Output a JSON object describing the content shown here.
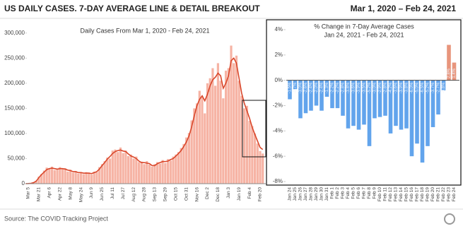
{
  "header": {
    "title": "US DAILY CASES. 7-DAY AVERAGE LINE & DETAIL BREAKOUT",
    "date_range": "Mar 1, 2020 – Feb 24, 2021"
  },
  "source": "Source: The COVID Tracking Project",
  "chart_data": [
    {
      "type": "bar_line",
      "title": "Daily Cases From Mar 1, 2020 - Feb 24, 2021",
      "categories": [
        null,
        "Mar 5",
        null,
        null,
        null,
        "Mar 21",
        null,
        null,
        null,
        "Apr 6",
        null,
        null,
        null,
        "Apr 22",
        null,
        null,
        null,
        "May 8",
        null,
        null,
        null,
        "May 24",
        null,
        null,
        null,
        "Jun 9",
        null,
        null,
        null,
        "Jun 25",
        null,
        null,
        null,
        "Jul 11",
        null,
        null,
        null,
        "Jul 27",
        null,
        null,
        null,
        "Aug 12",
        null,
        null,
        null,
        "Aug 28",
        null,
        null,
        null,
        "Sep 13",
        null,
        null,
        null,
        "Sep 29",
        null,
        null,
        null,
        "Oct 15",
        null,
        null,
        null,
        "Oct 31",
        null,
        null,
        null,
        "Nov 16",
        null,
        null,
        null,
        "Dec 2",
        null,
        null,
        null,
        "Dec 18",
        null,
        null,
        null,
        "Jan 3",
        null,
        null,
        null,
        "Jan 19",
        null,
        null,
        null,
        "Feb 4",
        null,
        null,
        null,
        "Feb 20",
        null
      ],
      "series": [
        {
          "type": "bar",
          "color": "#f6b3a4",
          "values": [
            0,
            300,
            700,
            2500,
            6000,
            14000,
            19000,
            26000,
            32000,
            29000,
            34000,
            27000,
            28000,
            33000,
            29000,
            31000,
            24000,
            28000,
            22000,
            25000,
            20000,
            23000,
            19000,
            23000,
            22000,
            18000,
            24000,
            23000,
            33000,
            39000,
            45000,
            52000,
            50000,
            66000,
            68000,
            63000,
            72000,
            61000,
            66000,
            55000,
            58000,
            50000,
            54000,
            43000,
            44000,
            39000,
            45000,
            38000,
            34000,
            39000,
            43000,
            40000,
            47000,
            41000,
            49000,
            46000,
            54000,
            58000,
            63000,
            71000,
            79000,
            92000,
            101000,
            126000,
            150000,
            160000,
            185000,
            172000,
            140000,
            200000,
            210000,
            230000,
            195000,
            240000,
            205000,
            170000,
            225000,
            230000,
            275000,
            240000,
            255000,
            205000,
            175000,
            150000,
            155000,
            125000,
            115000,
            100000,
            80000,
            65000,
            60000
          ]
        },
        {
          "type": "line",
          "color": "#d9472b",
          "values": [
            0,
            200,
            600,
            2000,
            5000,
            12000,
            18000,
            23000,
            28000,
            30000,
            31000,
            30000,
            29000,
            30000,
            30000,
            29000,
            27000,
            26000,
            24000,
            24000,
            22000,
            22000,
            21000,
            21000,
            21000,
            20000,
            22000,
            24000,
            29000,
            36000,
            42000,
            49000,
            54000,
            60000,
            64000,
            66000,
            67000,
            65000,
            64000,
            59000,
            55000,
            53000,
            50000,
            45000,
            42000,
            42000,
            41000,
            40000,
            36000,
            36000,
            40000,
            42000,
            44000,
            44000,
            45000,
            48000,
            50000,
            55000,
            60000,
            66000,
            74000,
            83000,
            95000,
            113000,
            135000,
            155000,
            168000,
            175000,
            165000,
            178000,
            195000,
            207000,
            212000,
            220000,
            215000,
            190000,
            200000,
            215000,
            245000,
            250000,
            240000,
            210000,
            180000,
            160000,
            145000,
            130000,
            112000,
            98000,
            85000,
            72000,
            68000
          ]
        }
      ],
      "ylim": [
        0,
        325000
      ],
      "yticks": [
        {
          "value": 0,
          "label": "0"
        },
        {
          "value": 50000,
          "label": "50,000"
        },
        {
          "value": 100000,
          "label": "100,000"
        },
        {
          "value": 150000,
          "label": "150,000"
        },
        {
          "value": 200000,
          "label": "200,000"
        },
        {
          "value": 250000,
          "label": "250,000"
        },
        {
          "value": 300000,
          "label": "300,000"
        }
      ]
    },
    {
      "type": "bar",
      "title": "% Change in 7-Day Average Cases",
      "subtitle": "Jan 24, 2021 - Feb 24, 2021",
      "categories": [
        "Jan 24",
        "Jan 25",
        "Jan 26",
        "Jan 27",
        "Jan 28",
        "Jan 29",
        "Jan 30",
        "Jan 31",
        "Feb 1",
        "Feb 2",
        "Feb 3",
        "Feb 4",
        "Feb 5",
        "Feb 6",
        "Feb 7",
        "Feb 8",
        "Feb 9",
        "Feb 10",
        "Feb 11",
        "Feb 12",
        "Feb 13",
        "Feb 14",
        "Feb 15",
        "Feb 16",
        "Feb 17",
        "Feb 18",
        "Feb 19",
        "Feb 20",
        "Feb 21",
        "Feb 22",
        "Feb 23",
        "Feb 24"
      ],
      "values": [
        -1.5,
        -0.7,
        -3.0,
        -2.6,
        -2.4,
        -2.0,
        -2.4,
        -1.3,
        -2.2,
        -2.2,
        -2.8,
        -3.8,
        -3.6,
        -3.9,
        -3.5,
        -5.2,
        -3.0,
        -2.9,
        -2.8,
        -4.2,
        -3.6,
        -3.9,
        -3.8,
        -6.0,
        -5.0,
        -6.5,
        -5.2,
        -3.7,
        -2.7,
        -0.8,
        2.8,
        1.4
      ],
      "value_labels": [
        "-1.5%",
        "-0.7%",
        "-3.0%",
        "-2.6%",
        "-2.4%",
        "-2.0%",
        "-2.4%",
        "-1.3%",
        "-2.2%",
        "-2.2%",
        "-2.8%",
        "-3.8%",
        "-3.6%",
        "-3.9%",
        "-3.5%",
        "-5.2%",
        "-3.0%",
        "-2.9%",
        "-2.8%",
        "-4.2%",
        "-3.6%",
        "-3.9%",
        "-3.8%",
        "-6.0%",
        "-5.0%",
        "-6.5%",
        "-5.2%",
        "-3.7%",
        "-2.7%",
        "-0.8%",
        "2.8%",
        "1.4%"
      ],
      "negative_color": "#62a4ec",
      "positive_color": "#e8957c",
      "ylim": [
        -8,
        4
      ],
      "yticks": [
        {
          "value": -8,
          "label": "-8%"
        },
        {
          "value": -6,
          "label": "-6%"
        },
        {
          "value": -4,
          "label": "-4%"
        },
        {
          "value": -2,
          "label": "-2%"
        },
        {
          "value": 0,
          "label": "0%"
        },
        {
          "value": 2,
          "label": "2%"
        },
        {
          "value": 4,
          "label": "4%"
        }
      ]
    }
  ]
}
